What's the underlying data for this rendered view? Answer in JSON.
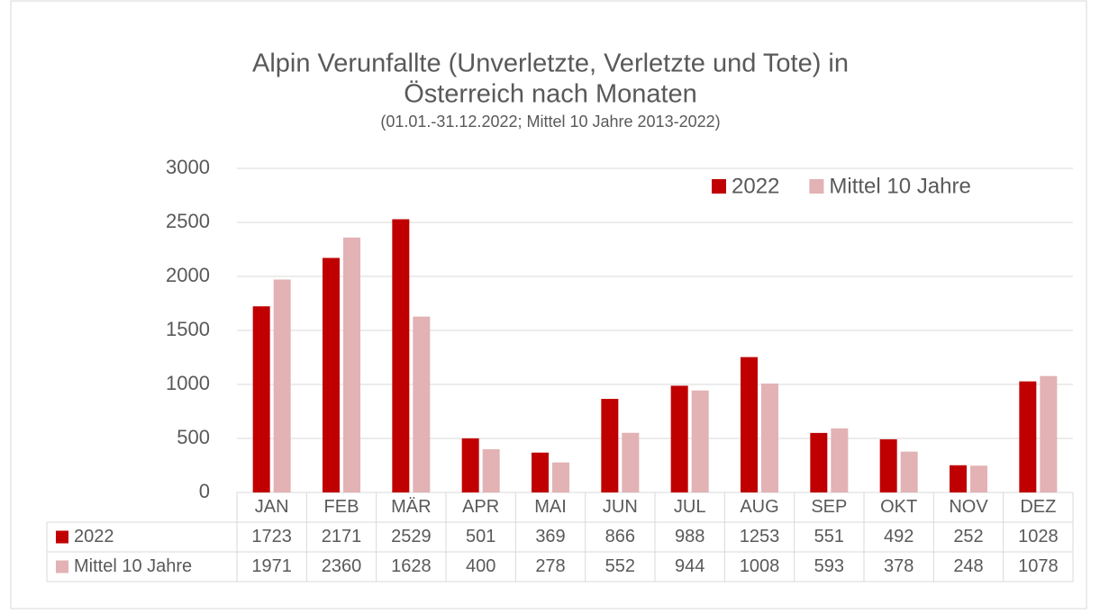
{
  "chart_data": {
    "type": "bar",
    "title": [
      "Alpin Verunfallte (Unverletzte, Verletzte und Tote) in",
      "Österreich nach Monaten"
    ],
    "subtitle": "(01.01.-31.12.2022; Mittel 10 Jahre 2013-2022)",
    "categories": [
      "JAN",
      "FEB",
      "MÄR",
      "APR",
      "MAI",
      "JUN",
      "JUL",
      "AUG",
      "SEP",
      "OKT",
      "NOV",
      "DEZ"
    ],
    "series": [
      {
        "name": "2022",
        "color": "#c00000",
        "values": [
          1723,
          2171,
          2529,
          501,
          369,
          866,
          988,
          1253,
          551,
          492,
          252,
          1028
        ]
      },
      {
        "name": "Mittel 10 Jahre",
        "color": "#e2b2b5",
        "values": [
          1971,
          2360,
          1628,
          400,
          278,
          552,
          944,
          1008,
          593,
          378,
          248,
          1078
        ]
      }
    ],
    "ylim": [
      0,
      3000
    ],
    "yticks": [
      0,
      500,
      1000,
      1500,
      2000,
      2500,
      3000
    ],
    "grid": true,
    "legend": "top-right"
  }
}
